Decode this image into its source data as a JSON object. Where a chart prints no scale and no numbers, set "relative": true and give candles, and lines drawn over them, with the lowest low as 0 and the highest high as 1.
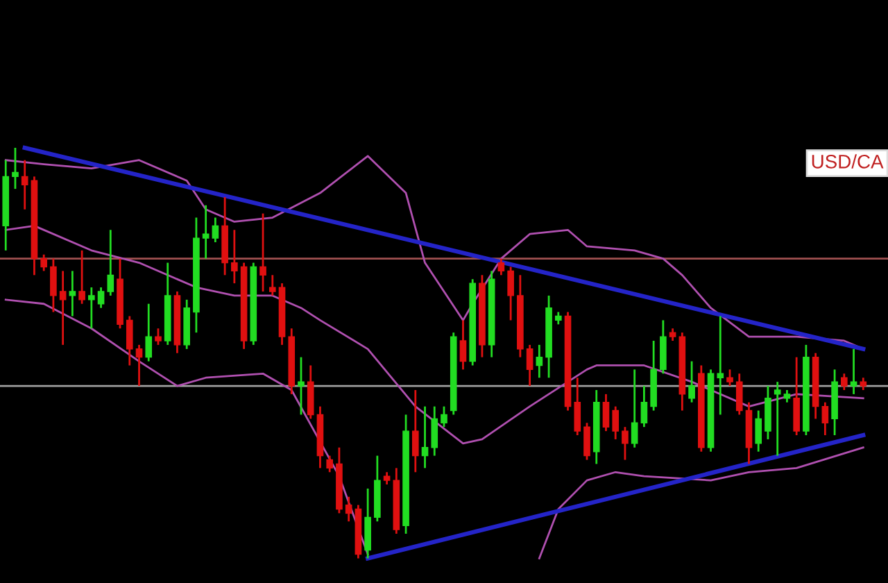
{
  "chart_data": {
    "type": "candlestick",
    "relative": true,
    "categories": [
      null,
      null,
      null,
      null,
      null,
      null,
      null,
      null,
      null,
      null,
      null,
      null,
      null,
      null,
      null,
      null,
      null,
      null,
      null,
      null,
      null,
      null,
      null,
      null,
      null,
      null,
      null,
      null,
      null,
      null,
      null,
      null,
      null,
      null,
      null,
      null,
      null,
      null,
      null,
      null,
      null,
      null,
      null,
      null,
      null,
      null,
      null,
      null,
      null,
      null,
      null,
      null,
      null,
      null,
      null,
      null,
      null,
      null,
      null,
      null,
      null,
      null,
      null,
      null,
      null,
      null,
      null,
      null,
      null,
      null,
      null,
      null,
      null,
      null,
      null,
      null,
      null,
      null,
      null,
      null,
      null,
      null,
      null,
      null,
      null,
      null,
      null,
      null,
      null,
      null,
      null
    ],
    "colors": [
      "#22dd22",
      "#22dd22",
      "#e01010",
      "#e01010",
      "#e01010",
      "#e01010",
      "#e01010",
      "#22dd22",
      "#e01010",
      "#22dd22",
      "#22dd22",
      "#22dd22",
      "#e01010",
      "#e01010",
      "#e01010",
      "#22dd22",
      "#e01010",
      "#22dd22",
      "#e01010",
      "#22dd22",
      "#22dd22",
      "#22dd22",
      "#22dd22",
      "#e01010",
      "#e01010",
      "#e01010",
      "#22dd22",
      "#e01010",
      "#e01010",
      "#e01010",
      "#e01010",
      "#22dd22",
      "#e01010",
      "#e01010",
      "#e01010",
      "#e01010",
      "#e01010",
      "#e01010",
      "#22dd22",
      "#22dd22",
      "#e01010",
      "#e01010",
      "#22dd22",
      "#e01010",
      "#22dd22",
      "#22dd22",
      "#22dd22",
      "#22dd22",
      "#e01010",
      "#22dd22",
      "#e01010",
      "#22dd22",
      "#e01010",
      "#e01010",
      "#e01010",
      "#e01010",
      "#22dd22",
      "#22dd22",
      "#22dd22",
      "#e01010",
      "#e01010",
      "#e01010",
      "#22dd22",
      "#e01010",
      "#e01010",
      "#e01010",
      "#22dd22",
      "#22dd22",
      "#22dd22",
      "#22dd22",
      "#e01010",
      "#e01010",
      "#22dd22",
      "#e01010",
      "#22dd22",
      "#22dd22",
      "#e01010",
      "#e01010",
      "#e01010",
      "#22dd22",
      "#22dd22",
      "#22dd22",
      "#22dd22",
      "#e01010",
      "#22dd22",
      "#e01010",
      "#e01010",
      "#22dd22",
      "#e01010",
      "#22dd22",
      "#e01010"
    ],
    "ohlc": [
      [
        0.81,
        0.97,
        0.75,
        0.93
      ],
      [
        0.93,
        1.0,
        0.9,
        0.94
      ],
      [
        0.93,
        0.97,
        0.85,
        0.91
      ],
      [
        0.92,
        0.93,
        0.69,
        0.73
      ],
      [
        0.73,
        0.74,
        0.7,
        0.71
      ],
      [
        0.71,
        0.73,
        0.6,
        0.64
      ],
      [
        0.65,
        0.7,
        0.52,
        0.63
      ],
      [
        0.64,
        0.7,
        0.59,
        0.65
      ],
      [
        0.65,
        0.75,
        0.62,
        0.63
      ],
      [
        0.63,
        0.66,
        0.56,
        0.64
      ],
      [
        0.62,
        0.66,
        0.61,
        0.65
      ],
      [
        0.65,
        0.8,
        0.64,
        0.69
      ],
      [
        0.68,
        0.73,
        0.56,
        0.57
      ],
      [
        0.58,
        0.59,
        0.47,
        0.51
      ],
      [
        0.51,
        0.52,
        0.42,
        0.49
      ],
      [
        0.49,
        0.62,
        0.48,
        0.54
      ],
      [
        0.54,
        0.56,
        0.52,
        0.53
      ],
      [
        0.53,
        0.72,
        0.52,
        0.64
      ],
      [
        0.64,
        0.65,
        0.5,
        0.52
      ],
      [
        0.52,
        0.63,
        0.51,
        0.61
      ],
      [
        0.6,
        0.83,
        0.55,
        0.78
      ],
      [
        0.78,
        0.86,
        0.73,
        0.79
      ],
      [
        0.78,
        0.83,
        0.77,
        0.81
      ],
      [
        0.81,
        0.88,
        0.69,
        0.72
      ],
      [
        0.72,
        0.8,
        0.67,
        0.7
      ],
      [
        0.71,
        0.72,
        0.51,
        0.53
      ],
      [
        0.53,
        0.72,
        0.52,
        0.71
      ],
      [
        0.71,
        0.84,
        0.65,
        0.69
      ],
      [
        0.66,
        0.69,
        0.64,
        0.65
      ],
      [
        0.66,
        0.67,
        0.52,
        0.54
      ],
      [
        0.54,
        0.56,
        0.4,
        0.42
      ],
      [
        0.42,
        0.49,
        0.35,
        0.43
      ],
      [
        0.43,
        0.47,
        0.34,
        0.35
      ],
      [
        0.35,
        0.37,
        0.22,
        0.25
      ],
      [
        0.24,
        0.25,
        0.21,
        0.22
      ],
      [
        0.23,
        0.27,
        0.11,
        0.12
      ],
      [
        0.13,
        0.15,
        0.09,
        0.11
      ],
      [
        0.12,
        0.13,
        0.0,
        0.01
      ],
      [
        0.02,
        0.17,
        0.0,
        0.1
      ],
      [
        0.1,
        0.25,
        0.09,
        0.19
      ],
      [
        0.2,
        0.21,
        0.18,
        0.19
      ],
      [
        0.19,
        0.22,
        0.06,
        0.07
      ],
      [
        0.08,
        0.35,
        0.06,
        0.31
      ],
      [
        0.31,
        0.41,
        0.21,
        0.25
      ],
      [
        0.25,
        0.37,
        0.22,
        0.27
      ],
      [
        0.27,
        0.37,
        0.25,
        0.34
      ],
      [
        0.33,
        0.37,
        0.32,
        0.35
      ],
      [
        0.36,
        0.55,
        0.35,
        0.54
      ],
      [
        0.53,
        0.58,
        0.46,
        0.48
      ],
      [
        0.48,
        0.68,
        0.47,
        0.67
      ],
      [
        0.67,
        0.69,
        0.49,
        0.52
      ],
      [
        0.52,
        0.7,
        0.49,
        0.68
      ],
      [
        0.72,
        0.73,
        0.69,
        0.7
      ],
      [
        0.7,
        0.71,
        0.58,
        0.64
      ],
      [
        0.64,
        0.69,
        0.49,
        0.51
      ],
      [
        0.51,
        0.52,
        0.42,
        0.46
      ],
      [
        0.47,
        0.52,
        0.44,
        0.49
      ],
      [
        0.49,
        0.64,
        0.44,
        0.61
      ],
      [
        0.58,
        0.6,
        0.57,
        0.59
      ],
      [
        0.59,
        0.6,
        0.36,
        0.37
      ],
      [
        0.38,
        0.44,
        0.3,
        0.31
      ],
      [
        0.32,
        0.33,
        0.24,
        0.25
      ],
      [
        0.26,
        0.41,
        0.23,
        0.38
      ],
      [
        0.38,
        0.4,
        0.31,
        0.32
      ],
      [
        0.36,
        0.37,
        0.29,
        0.31
      ],
      [
        0.31,
        0.32,
        0.24,
        0.28
      ],
      [
        0.28,
        0.46,
        0.27,
        0.33
      ],
      [
        0.33,
        0.42,
        0.32,
        0.38
      ],
      [
        0.37,
        0.53,
        0.36,
        0.46
      ],
      [
        0.46,
        0.58,
        0.45,
        0.54
      ],
      [
        0.55,
        0.56,
        0.53,
        0.54
      ],
      [
        0.54,
        0.55,
        0.36,
        0.4
      ],
      [
        0.39,
        0.48,
        0.38,
        0.42
      ],
      [
        0.45,
        0.47,
        0.26,
        0.27
      ],
      [
        0.27,
        0.46,
        0.26,
        0.45
      ],
      [
        0.44,
        0.59,
        0.35,
        0.45
      ],
      [
        0.44,
        0.46,
        0.42,
        0.43
      ],
      [
        0.43,
        0.45,
        0.35,
        0.36
      ],
      [
        0.36,
        0.38,
        0.23,
        0.27
      ],
      [
        0.28,
        0.36,
        0.26,
        0.34
      ],
      [
        0.31,
        0.42,
        0.29,
        0.39
      ],
      [
        0.4,
        0.43,
        0.25,
        0.41
      ],
      [
        0.39,
        0.41,
        0.38,
        0.4
      ],
      [
        0.39,
        0.49,
        0.3,
        0.31
      ],
      [
        0.31,
        0.52,
        0.3,
        0.49
      ],
      [
        0.49,
        0.5,
        0.34,
        0.37
      ],
      [
        0.37,
        0.38,
        0.3,
        0.33
      ],
      [
        0.34,
        0.46,
        0.3,
        0.43
      ],
      [
        0.44,
        0.45,
        0.41,
        0.42
      ],
      [
        0.42,
        0.51,
        0.4,
        0.43
      ],
      [
        0.43,
        0.44,
        0.41,
        0.42
      ]
    ],
    "series": [
      {
        "type": "line",
        "color": "#b050b0",
        "values": [
          0.97,
          null,
          null,
          null,
          0.96,
          null,
          null,
          null,
          null,
          0.95,
          null,
          null,
          null,
          null,
          0.97,
          null,
          null,
          null,
          null,
          0.92,
          null,
          0.85,
          null,
          null,
          0.82,
          null,
          null,
          null,
          0.83,
          null,
          null,
          null,
          null,
          0.89,
          null,
          null,
          null,
          null,
          0.98,
          null,
          null,
          null,
          0.89,
          null,
          0.72,
          null,
          null,
          null,
          0.58,
          0.62,
          null,
          null,
          0.73,
          null,
          null,
          0.79,
          null,
          null,
          null,
          0.8,
          null,
          0.76,
          null,
          null,
          null,
          null,
          0.75,
          null,
          null,
          0.73,
          null,
          0.69,
          null,
          null,
          0.61,
          null,
          null,
          null,
          0.54,
          null,
          null,
          null,
          null,
          0.54,
          null,
          null,
          null,
          null,
          0.53,
          null,
          0.51
        ]
      },
      {
        "type": "line",
        "color": "#b050b0",
        "values": [
          0.8,
          null,
          null,
          0.81,
          null,
          null,
          null,
          null,
          null,
          0.75,
          null,
          null,
          null,
          null,
          0.72,
          null,
          null,
          null,
          null,
          null,
          0.66,
          null,
          null,
          null,
          0.64,
          null,
          null,
          null,
          0.64,
          null,
          null,
          0.61,
          null,
          0.58,
          null,
          null,
          null,
          null,
          0.51,
          null,
          null,
          null,
          null,
          0.37,
          null,
          null,
          null,
          null,
          0.28,
          null,
          0.29,
          null,
          null,
          null,
          null,
          0.37,
          null,
          null,
          null,
          null,
          null,
          0.46,
          0.47,
          null,
          null,
          null,
          null,
          0.47,
          null,
          null,
          null,
          null,
          0.43,
          null,
          null,
          null,
          null,
          null,
          0.37,
          null,
          null,
          null,
          null,
          0.4,
          null,
          null,
          null,
          null,
          null,
          null,
          0.39
        ]
      },
      {
        "type": "line",
        "color": "#b050b0",
        "values": [
          0.63,
          null,
          null,
          null,
          0.62,
          null,
          null,
          null,
          null,
          0.56,
          null,
          null,
          null,
          null,
          0.48,
          null,
          null,
          null,
          0.42,
          null,
          null,
          0.44,
          null,
          null,
          null,
          null,
          null,
          0.45,
          null,
          null,
          0.41,
          null,
          null,
          null,
          null,
          0.2,
          null,
          null,
          0.01,
          null,
          null,
          null,
          null,
          null,
          null,
          null,
          null,
          null,
          null,
          null,
          null,
          null,
          null,
          null,
          null,
          null,
          null,
          null,
          null,
          null,
          null,
          null,
          null,
          null,
          null,
          null,
          null,
          null,
          null,
          null,
          null,
          null,
          null,
          null,
          null,
          null,
          null,
          null,
          null,
          null,
          null,
          null,
          null,
          null,
          null,
          null,
          null,
          null,
          null,
          null,
          null
        ]
      },
      {
        "type": "line",
        "color": "#b050b0",
        "values": [
          null,
          null,
          null,
          null,
          null,
          null,
          null,
          null,
          null,
          null,
          null,
          null,
          null,
          null,
          null,
          null,
          null,
          null,
          null,
          null,
          null,
          null,
          null,
          null,
          null,
          null,
          null,
          null,
          null,
          null,
          null,
          null,
          null,
          null,
          null,
          null,
          null,
          null,
          null,
          null,
          null,
          null,
          null,
          null,
          null,
          null,
          null,
          null,
          null,
          null,
          null,
          null,
          null,
          null,
          null,
          null,
          0.0,
          null,
          0.12,
          null,
          null,
          0.19,
          null,
          null,
          0.21,
          null,
          null,
          0.2,
          null,
          null,
          null,
          null,
          null,
          null,
          0.19,
          null,
          null,
          null,
          0.21,
          null,
          null,
          null,
          null,
          0.22,
          null,
          null,
          null,
          null,
          null,
          null,
          0.27
        ]
      },
      {
        "type": "line",
        "color": "#2424c8",
        "values": [
          null,
          null,
          1.0,
          null,
          null,
          null,
          null,
          null,
          null,
          null,
          null,
          null,
          null,
          null,
          null,
          null,
          null,
          null,
          null,
          null,
          null,
          null,
          null,
          null,
          null,
          null,
          null,
          null,
          null,
          null,
          null,
          null,
          null,
          null,
          null,
          null,
          null,
          null,
          null,
          null,
          null,
          null,
          null,
          null,
          null,
          null,
          null,
          null,
          null,
          null,
          null,
          null,
          null,
          null,
          null,
          null,
          null,
          null,
          null,
          null,
          null,
          null,
          null,
          null,
          null,
          null,
          null,
          null,
          null,
          null,
          null,
          null,
          null,
          null,
          null,
          null,
          null,
          null,
          null,
          null,
          null,
          null,
          null,
          null,
          null,
          null,
          null,
          null,
          null,
          null,
          0.51
        ]
      },
      {
        "type": "line",
        "color": "#2424c8",
        "values": [
          null,
          null,
          null,
          null,
          null,
          null,
          null,
          null,
          null,
          null,
          null,
          null,
          null,
          null,
          null,
          null,
          null,
          null,
          null,
          null,
          null,
          null,
          null,
          null,
          null,
          null,
          null,
          null,
          null,
          null,
          null,
          null,
          null,
          null,
          null,
          null,
          null,
          null,
          0.0,
          null,
          null,
          null,
          null,
          null,
          null,
          null,
          null,
          null,
          null,
          null,
          null,
          null,
          null,
          null,
          null,
          null,
          null,
          null,
          null,
          null,
          null,
          null,
          null,
          null,
          null,
          null,
          null,
          null,
          null,
          null,
          null,
          null,
          null,
          null,
          null,
          null,
          null,
          null,
          null,
          null,
          null,
          null,
          null,
          null,
          null,
          null,
          null,
          null,
          null,
          null,
          0.3
        ]
      }
    ],
    "ref_lines": [
      {
        "axis": "y",
        "value": 0.42,
        "color": "#a0a0a0"
      },
      {
        "axis": "y",
        "value": 0.73,
        "color": "#a05050"
      }
    ],
    "annotations": [
      "USD/CA"
    ]
  }
}
